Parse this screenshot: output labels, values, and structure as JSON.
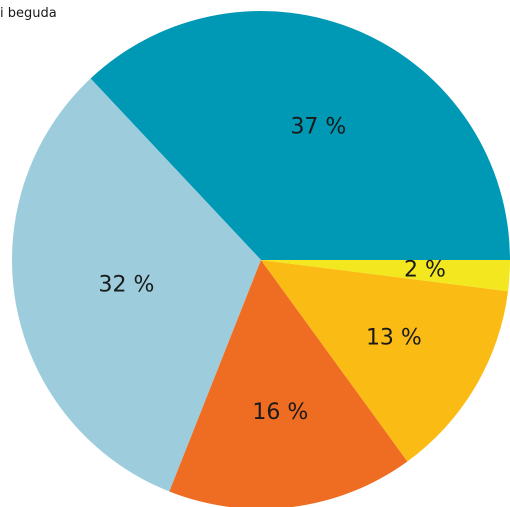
{
  "caption": "i beguda",
  "chart_data": {
    "type": "pie",
    "categories": [
      "",
      "",
      "",
      "",
      ""
    ],
    "values": [
      37,
      32,
      16,
      13,
      2
    ],
    "labels": [
      "37 %",
      "32 %",
      "16 %",
      "13 %",
      "2 %"
    ],
    "colors": [
      "#0099b5",
      "#9dcddd",
      "#ef6d22",
      "#fbbb15",
      "#f3e81f"
    ],
    "start_angle_deg": 0,
    "direction": "counterclockwise-from-east"
  }
}
